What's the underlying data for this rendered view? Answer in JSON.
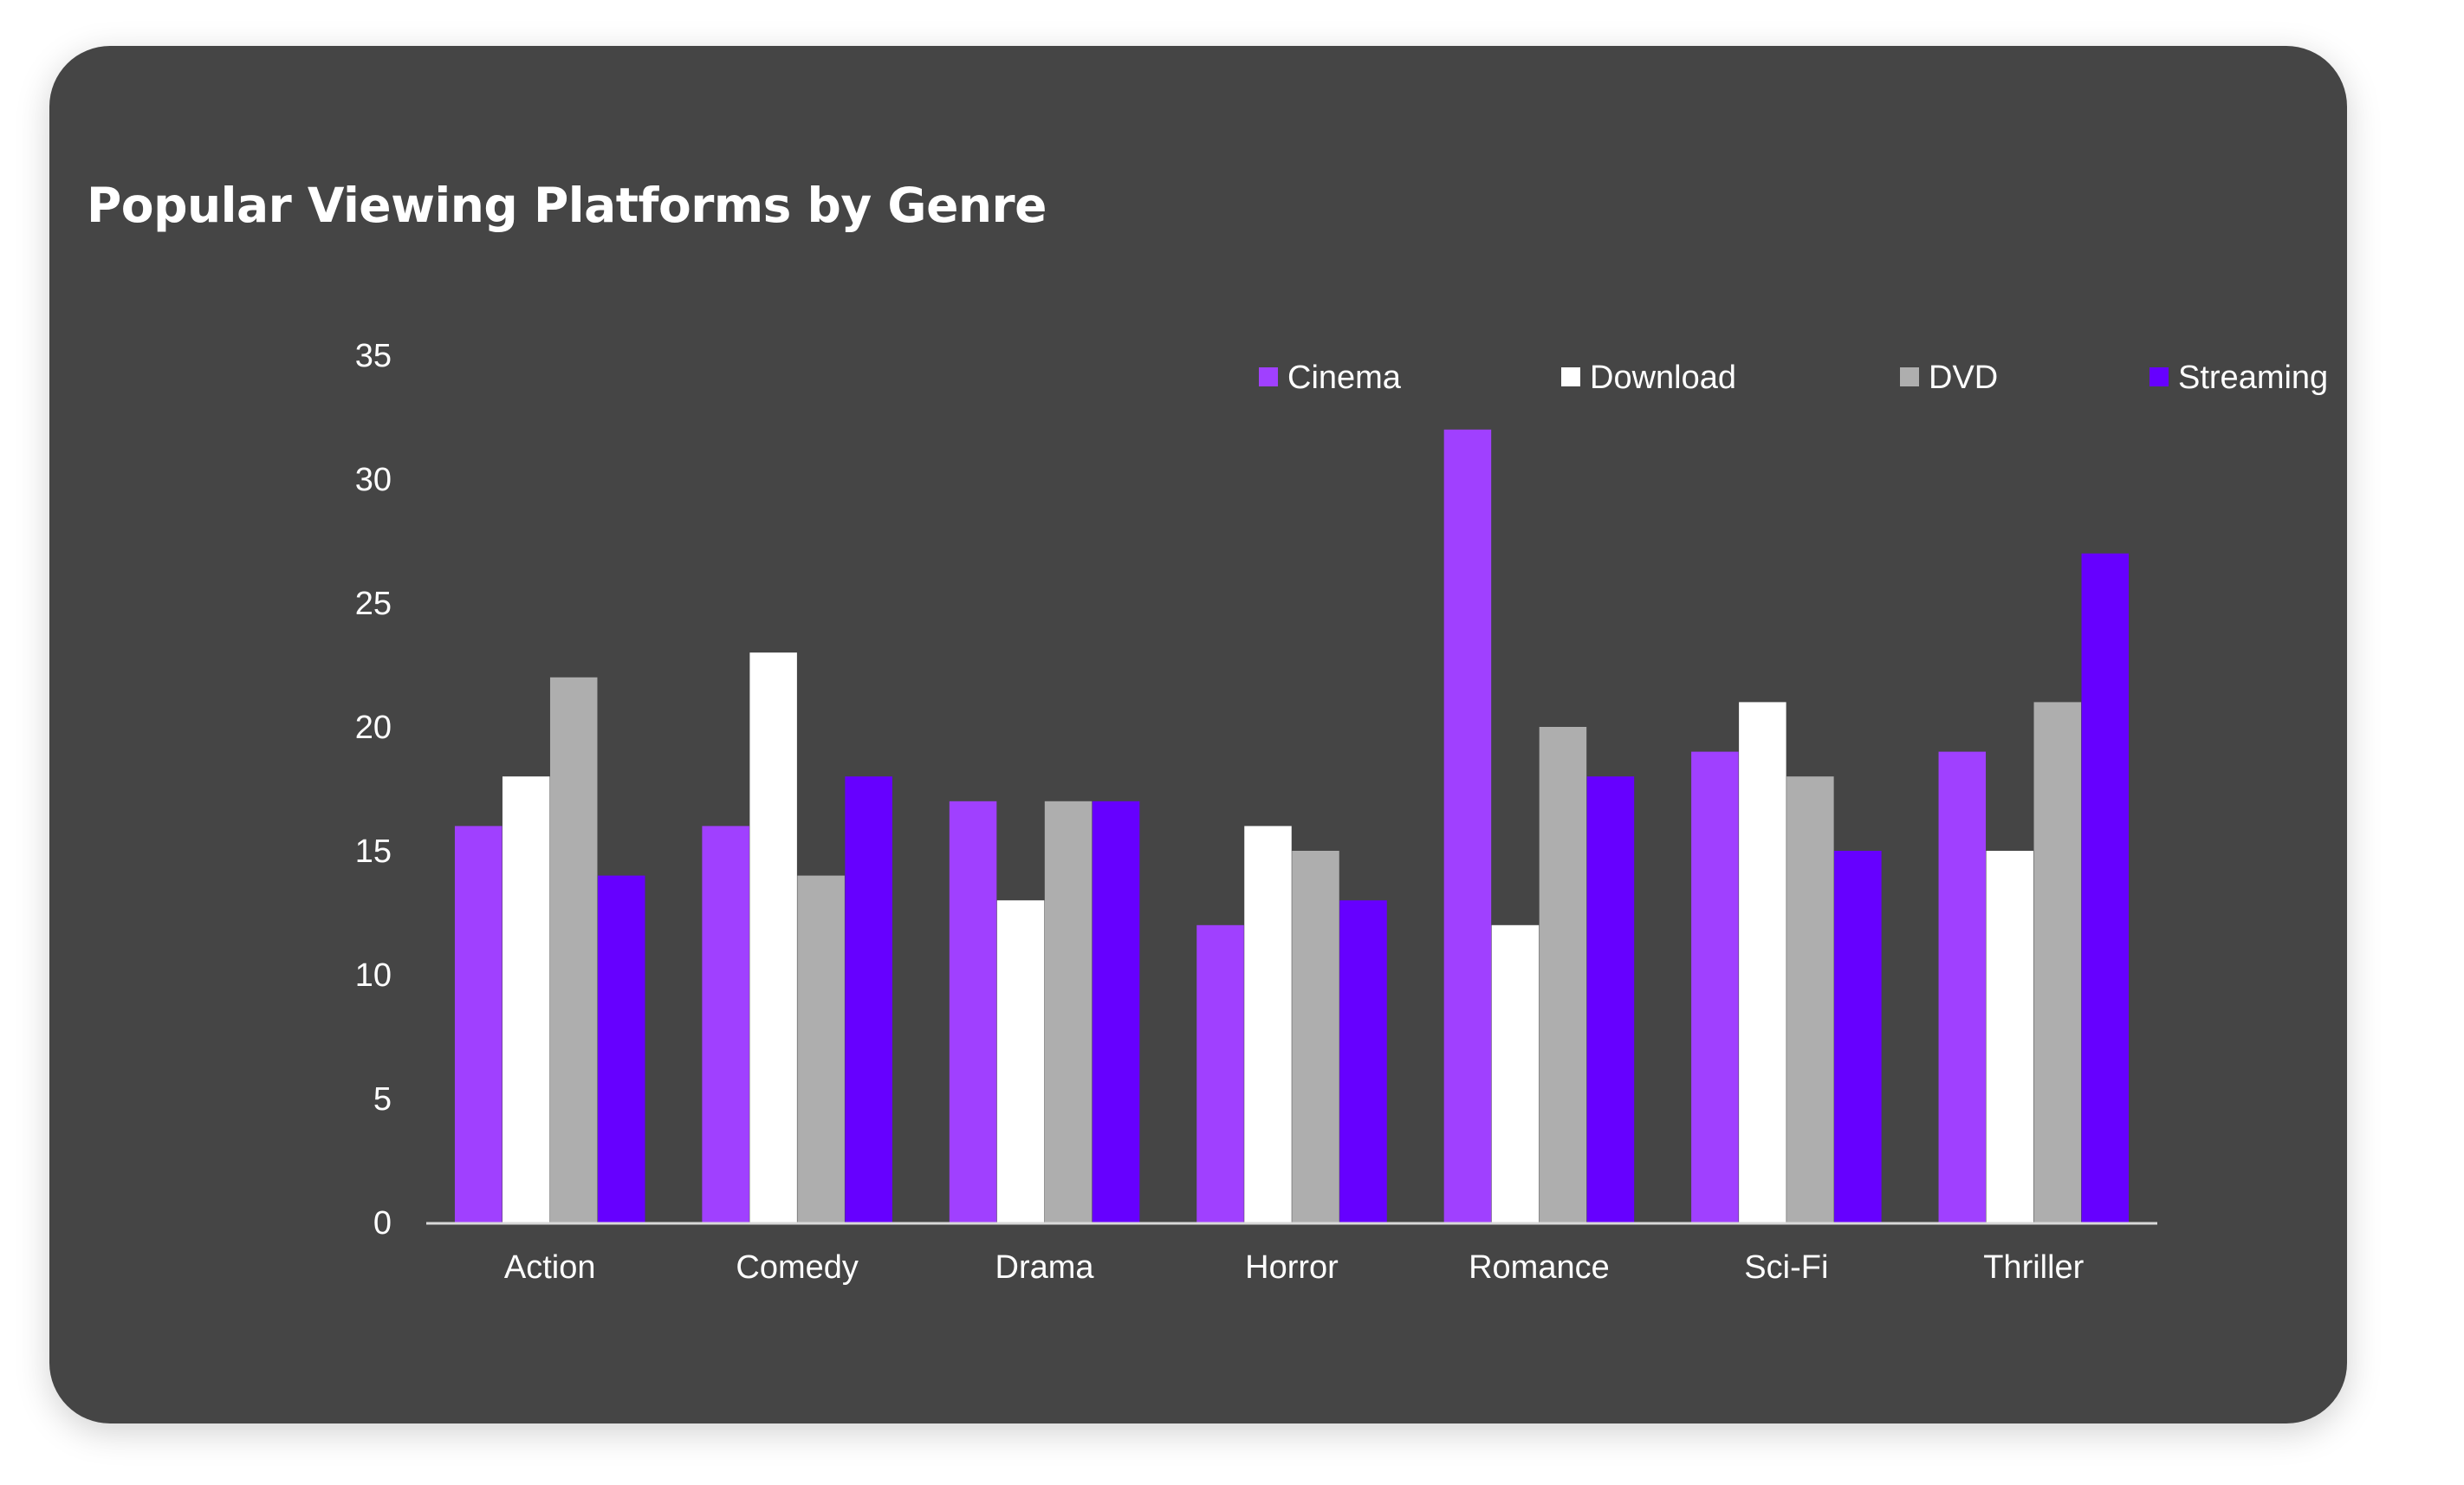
{
  "chart_data": {
    "type": "bar",
    "title": "Popular Viewing Platforms by Genre",
    "xlabel": "",
    "ylabel": "",
    "categories": [
      "Action",
      "Comedy",
      "Drama",
      "Horror",
      "Romance",
      "Sci-Fi",
      "Thriller"
    ],
    "series": [
      {
        "name": "Cinema",
        "color": "#A040FF",
        "values": [
          16,
          16,
          17,
          12,
          32,
          19,
          19
        ]
      },
      {
        "name": "Download",
        "color": "#FFFFFF",
        "values": [
          18,
          23,
          13,
          16,
          12,
          21,
          15
        ]
      },
      {
        "name": "DVD",
        "color": "#AEAEAE",
        "values": [
          22,
          14,
          17,
          15,
          20,
          18,
          21
        ]
      },
      {
        "name": "Streaming",
        "color": "#6600FF",
        "values": [
          14,
          18,
          17,
          13,
          18,
          15,
          27
        ]
      }
    ],
    "ylim": [
      0,
      35
    ],
    "yticks": [
      0,
      5,
      10,
      15,
      20,
      25,
      30,
      35
    ],
    "grid": false,
    "legend_position": "top-right"
  },
  "colors": {
    "card_background": "#454545",
    "text": "#FFFFFF",
    "axis_line": "#D9D9D9"
  }
}
